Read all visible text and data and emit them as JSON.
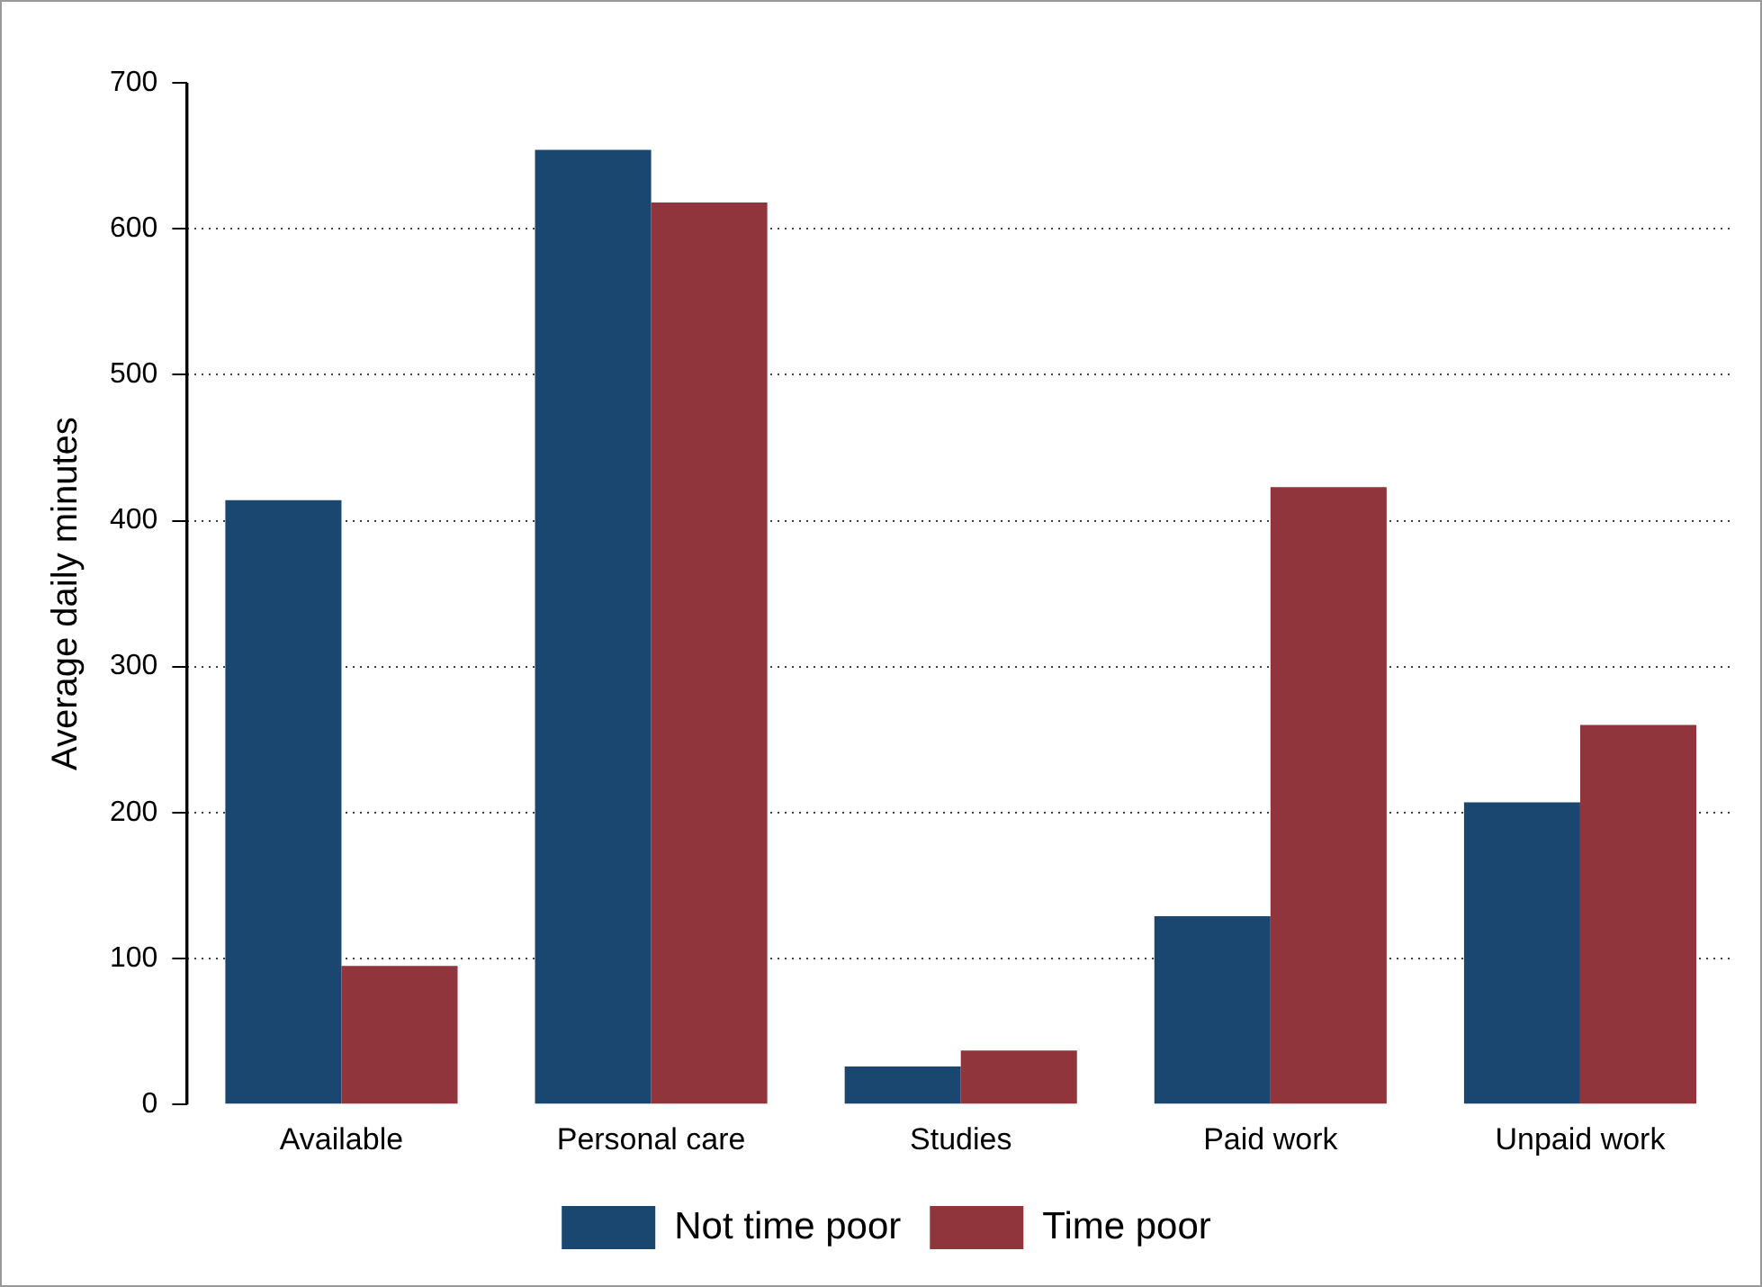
{
  "chart_data": {
    "type": "bar",
    "ylabel": "Average daily minutes",
    "categories": [
      "Available",
      "Personal care",
      "Studies",
      "Paid work",
      "Unpaid work"
    ],
    "series": [
      {
        "name": "Not time poor",
        "color": "#1a476f",
        "values": [
          414,
          654,
          26,
          129,
          207
        ]
      },
      {
        "name": "Time poor",
        "color": "#90353b",
        "values": [
          95,
          618,
          37,
          423,
          260
        ]
      }
    ],
    "ylim": [
      0,
      700
    ],
    "yticks": [
      0,
      100,
      200,
      300,
      400,
      500,
      600,
      700
    ],
    "grid": "y",
    "legend": "bottom"
  }
}
